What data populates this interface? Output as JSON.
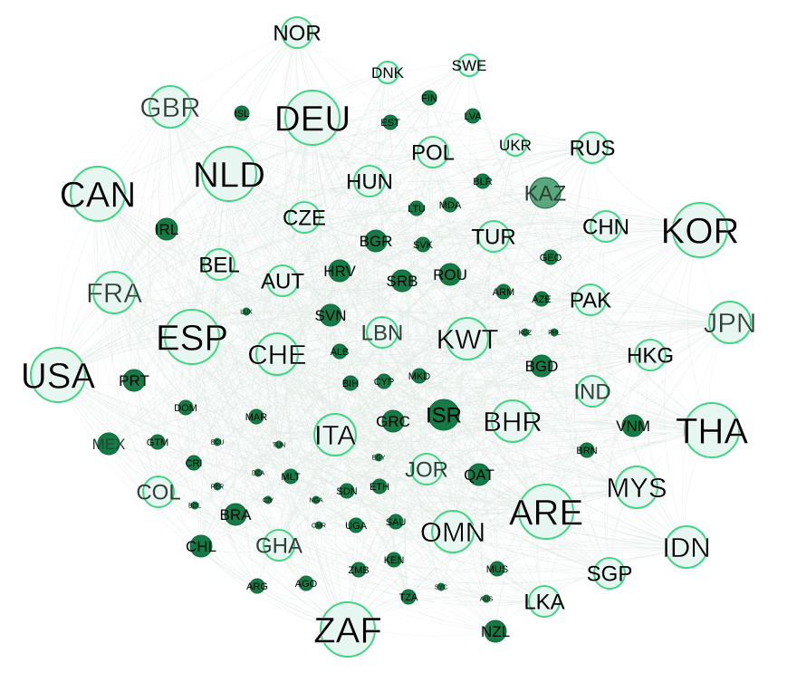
{
  "colors": {
    "edge": "#2e7d4f",
    "light_fill": "#e8f6f1",
    "light_stroke": "#3fd584",
    "mid_fill": "#5aa77e",
    "dark_fill": "#157a45",
    "dark_stroke": "#0f6a3a",
    "label_dark": "#000000",
    "label_dim": "#3a4a40",
    "label_light": "#e8fff0"
  },
  "nodes": [
    {
      "id": "NOR",
      "label": "NOR",
      "tone": "light",
      "size": "m"
    },
    {
      "id": "DNK",
      "label": "DNK",
      "tone": "light",
      "size": "s"
    },
    {
      "id": "SWE",
      "label": "SWE",
      "tone": "light",
      "size": "s"
    },
    {
      "id": "GBR",
      "label": "GBR",
      "tone": "light",
      "size": "l"
    },
    {
      "id": "ISL",
      "label": "ISL",
      "tone": "dark",
      "size": "xs"
    },
    {
      "id": "DEU",
      "label": "DEU",
      "tone": "light",
      "size": "xl"
    },
    {
      "id": "FIN",
      "label": "FIN",
      "tone": "dark",
      "size": "xs"
    },
    {
      "id": "EST",
      "label": "EST",
      "tone": "dark",
      "size": "xs"
    },
    {
      "id": "LVA",
      "label": "LVA",
      "tone": "dark",
      "size": "xs"
    },
    {
      "id": "POL",
      "label": "POL",
      "tone": "light",
      "size": "m"
    },
    {
      "id": "UKR",
      "label": "UKR",
      "tone": "light",
      "size": "s"
    },
    {
      "id": "RUS",
      "label": "RUS",
      "tone": "light",
      "size": "m"
    },
    {
      "id": "CAN",
      "label": "CAN",
      "tone": "light",
      "size": "xl"
    },
    {
      "id": "NLD",
      "label": "NLD",
      "tone": "light",
      "size": "xl"
    },
    {
      "id": "HUN",
      "label": "HUN",
      "tone": "light",
      "size": "m"
    },
    {
      "id": "BLR",
      "label": "BLR",
      "tone": "dark",
      "size": "xs"
    },
    {
      "id": "KAZ",
      "label": "KAZ",
      "tone": "mid",
      "size": "m"
    },
    {
      "id": "KOR",
      "label": "KOR",
      "tone": "light",
      "size": "xl"
    },
    {
      "id": "CHN",
      "label": "CHN",
      "tone": "light",
      "size": "m"
    },
    {
      "id": "IRL",
      "label": "IRL",
      "tone": "dark",
      "size": "s"
    },
    {
      "id": "CZE",
      "label": "CZE",
      "tone": "light",
      "size": "m"
    },
    {
      "id": "LTU",
      "label": "LTU",
      "tone": "dark",
      "size": "xs"
    },
    {
      "id": "MDA",
      "label": "MDA",
      "tone": "dark",
      "size": "xs"
    },
    {
      "id": "TUR",
      "label": "TUR",
      "tone": "light",
      "size": "m"
    },
    {
      "id": "BGR",
      "label": "BGR",
      "tone": "dark",
      "size": "s"
    },
    {
      "id": "SVK",
      "label": "SVK",
      "tone": "dark",
      "size": "xs"
    },
    {
      "id": "GEO",
      "label": "GEO",
      "tone": "dark",
      "size": "xs"
    },
    {
      "id": "FRA",
      "label": "FRA",
      "tone": "light",
      "size": "l"
    },
    {
      "id": "BEL",
      "label": "BEL",
      "tone": "light",
      "size": "m"
    },
    {
      "id": "AUT",
      "label": "AUT",
      "tone": "light",
      "size": "m"
    },
    {
      "id": "HRV",
      "label": "HRV",
      "tone": "dark",
      "size": "s"
    },
    {
      "id": "SRB",
      "label": "SRB",
      "tone": "dark",
      "size": "s"
    },
    {
      "id": "ROU",
      "label": "ROU",
      "tone": "dark",
      "size": "s"
    },
    {
      "id": "ARM",
      "label": "ARM",
      "tone": "dark",
      "size": "xs"
    },
    {
      "id": "AZE",
      "label": "AZE",
      "tone": "dark",
      "size": "xs"
    },
    {
      "id": "PAK",
      "label": "PAK",
      "tone": "light",
      "size": "m"
    },
    {
      "id": "JPN",
      "label": "JPN",
      "tone": "light",
      "size": "l"
    },
    {
      "id": "ESP",
      "label": "ESP",
      "tone": "light",
      "size": "xl"
    },
    {
      "id": "LUX",
      "label": "LUX",
      "tone": "dark",
      "size": "xxs"
    },
    {
      "id": "SVN",
      "label": "SVN",
      "tone": "dark",
      "size": "s"
    },
    {
      "id": "LBN",
      "label": "LBN",
      "tone": "light",
      "size": "m"
    },
    {
      "id": "KWT",
      "label": "KWT",
      "tone": "light",
      "size": "l"
    },
    {
      "id": "KGZ",
      "label": "KGZ",
      "tone": "dark",
      "size": "xxs"
    },
    {
      "id": "PHL",
      "label": "PHL",
      "tone": "dark",
      "size": "xxs"
    },
    {
      "id": "CHE",
      "label": "CHE",
      "tone": "light",
      "size": "l"
    },
    {
      "id": "ALB",
      "label": "ALB",
      "tone": "dark",
      "size": "xs"
    },
    {
      "id": "HKG",
      "label": "HKG",
      "tone": "light",
      "size": "m"
    },
    {
      "id": "USA",
      "label": "USA",
      "tone": "light",
      "size": "xl"
    },
    {
      "id": "PRT",
      "label": "PRT",
      "tone": "dark",
      "size": "s"
    },
    {
      "id": "BGD",
      "label": "BGD",
      "tone": "dark",
      "size": "s"
    },
    {
      "id": "IND",
      "label": "IND",
      "tone": "light",
      "size": "m"
    },
    {
      "id": "BIH",
      "label": "BIH",
      "tone": "dark",
      "size": "xs"
    },
    {
      "id": "CYP",
      "label": "CYP",
      "tone": "dark",
      "size": "xs"
    },
    {
      "id": "MKD",
      "label": "MKD",
      "tone": "dark",
      "size": "xs"
    },
    {
      "id": "DOM",
      "label": "DOM",
      "tone": "dark",
      "size": "xs"
    },
    {
      "id": "MAR",
      "label": "MAR",
      "tone": "dark",
      "size": "xs"
    },
    {
      "id": "GRC",
      "label": "GRC",
      "tone": "dark",
      "size": "s"
    },
    {
      "id": "ISR",
      "label": "ISR",
      "tone": "dark",
      "size": "m"
    },
    {
      "id": "BHR",
      "label": "BHR",
      "tone": "light",
      "size": "l"
    },
    {
      "id": "VNM",
      "label": "VNM",
      "tone": "dark",
      "size": "s"
    },
    {
      "id": "THA",
      "label": "THA",
      "tone": "light",
      "size": "xl"
    },
    {
      "id": "MEX",
      "label": "MEX",
      "tone": "dark",
      "size": "s"
    },
    {
      "id": "GTM",
      "label": "GTM",
      "tone": "dark",
      "size": "xs"
    },
    {
      "id": "ECU",
      "label": "ECU",
      "tone": "dark",
      "size": "xxs"
    },
    {
      "id": "TUN",
      "label": "TUN",
      "tone": "dark",
      "size": "xxs"
    },
    {
      "id": "ITA",
      "label": "ITA",
      "tone": "light",
      "size": "l"
    },
    {
      "id": "BRN",
      "label": "BRN",
      "tone": "dark",
      "size": "xs"
    },
    {
      "id": "CRI",
      "label": "CRI",
      "tone": "dark",
      "size": "xs"
    },
    {
      "id": "DZA",
      "label": "DZA",
      "tone": "dark",
      "size": "xxs"
    },
    {
      "id": "MLT",
      "label": "MLT",
      "tone": "dark",
      "size": "xs"
    },
    {
      "id": "EGY",
      "label": "EGY",
      "tone": "dark",
      "size": "xxs"
    },
    {
      "id": "JOR",
      "label": "JOR",
      "tone": "light",
      "size": "m"
    },
    {
      "id": "QAT",
      "label": "QAT",
      "tone": "dark",
      "size": "s"
    },
    {
      "id": "MYS",
      "label": "MYS",
      "tone": "light",
      "size": "l"
    },
    {
      "id": "COL",
      "label": "COL",
      "tone": "light",
      "size": "m"
    },
    {
      "id": "PER",
      "label": "PER",
      "tone": "dark",
      "size": "xxs"
    },
    {
      "id": "SDN",
      "label": "SDN",
      "tone": "dark",
      "size": "xs"
    },
    {
      "id": "ETH",
      "label": "ETH",
      "tone": "dark",
      "size": "xs"
    },
    {
      "id": "ARE",
      "label": "ARE",
      "tone": "light",
      "size": "xl"
    },
    {
      "id": "BRA",
      "label": "BRA",
      "tone": "dark",
      "size": "s"
    },
    {
      "id": "CIV",
      "label": "CIV",
      "tone": "dark",
      "size": "xxs"
    },
    {
      "id": "NGA",
      "label": "NGA",
      "tone": "dark",
      "size": "xxs"
    },
    {
      "id": "BOL",
      "label": "BOL",
      "tone": "dark",
      "size": "xxs"
    },
    {
      "id": "CMR",
      "label": "CMR",
      "tone": "dark",
      "size": "xxs"
    },
    {
      "id": "UGA",
      "label": "UGA",
      "tone": "dark",
      "size": "xs"
    },
    {
      "id": "SAU",
      "label": "SAU",
      "tone": "dark",
      "size": "xs"
    },
    {
      "id": "OMN",
      "label": "OMN",
      "tone": "light",
      "size": "l"
    },
    {
      "id": "IDN",
      "label": "IDN",
      "tone": "light",
      "size": "l"
    },
    {
      "id": "CHL",
      "label": "CHL",
      "tone": "dark",
      "size": "s"
    },
    {
      "id": "GHA",
      "label": "GHA",
      "tone": "light",
      "size": "m"
    },
    {
      "id": "KEN",
      "label": "KEN",
      "tone": "dark",
      "size": "xs"
    },
    {
      "id": "MUS",
      "label": "MUS",
      "tone": "dark",
      "size": "xs"
    },
    {
      "id": "SGP",
      "label": "SGP",
      "tone": "light",
      "size": "m"
    },
    {
      "id": "ZMB",
      "label": "ZMB",
      "tone": "dark",
      "size": "xs"
    },
    {
      "id": "ARG",
      "label": "ARG",
      "tone": "dark",
      "size": "xs"
    },
    {
      "id": "AGO",
      "label": "AGO",
      "tone": "dark",
      "size": "xs"
    },
    {
      "id": "TZA",
      "label": "TZA",
      "tone": "dark",
      "size": "xs"
    },
    {
      "id": "SYC",
      "label": "SYC",
      "tone": "dark",
      "size": "xxs"
    },
    {
      "id": "AUS",
      "label": "AUS",
      "tone": "dark",
      "size": "xxs"
    },
    {
      "id": "LKA",
      "label": "LKA",
      "tone": "light",
      "size": "m"
    },
    {
      "id": "ZAF",
      "label": "ZAF",
      "tone": "light",
      "size": "xl"
    },
    {
      "id": "NZL",
      "label": "NZL",
      "tone": "dark",
      "size": "s"
    }
  ]
}
